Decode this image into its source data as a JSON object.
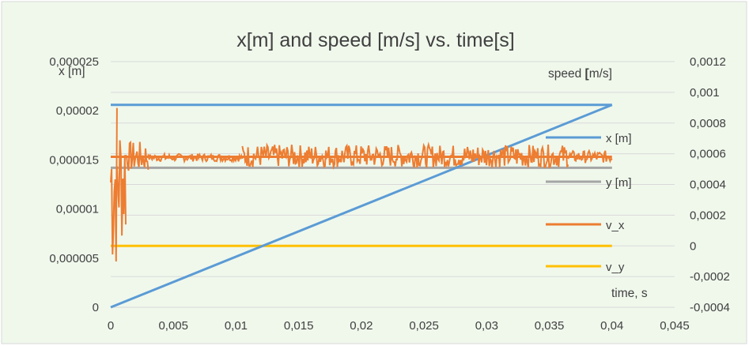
{
  "chart_data": {
    "type": "line",
    "title": "x[m] and speed [m/s] vs. time[s]",
    "xlabel": "time, s",
    "ylabel_left": "x [m]",
    "ylabel_right_prefix": "speed ",
    "ylabel_right_bracket": "[",
    "ylabel_right_suffix": "m/s]",
    "xlim": [
      0,
      0.045
    ],
    "ylim_left": [
      0,
      2.5e-05
    ],
    "ylim_right": [
      -0.0004,
      0.0012
    ],
    "x_ticks": [
      "0",
      "0,005",
      "0,01",
      "0,015",
      "0,02",
      "0,025",
      "0,03",
      "0,035",
      "0,04",
      "0,045"
    ],
    "y_left_ticks": [
      "0",
      "0,000005",
      "0,00001",
      "0,000015",
      "0,00002",
      "0,000025"
    ],
    "y_right_ticks": [
      "-0,0004",
      "-0,0002",
      "0",
      "0,0002",
      "0,0004",
      "0,0006",
      "0,0008",
      "0,001",
      "0,0012"
    ],
    "grid": true,
    "legend_position": "right",
    "series": [
      {
        "name": "x [m]",
        "axis": "left",
        "color": "#5B9BD5",
        "x": [
          0,
          0.04
        ],
        "y": [
          0,
          2.06e-05
        ]
      },
      {
        "name": "y [m]",
        "axis": "left",
        "color": "#A5A5A5",
        "x": [
          0,
          0.04
        ],
        "y": [
          1.42e-05,
          1.42e-05
        ]
      },
      {
        "name": "v_x",
        "axis": "right",
        "color": "#ED7D31",
        "x": [
          0,
          0.0003,
          0.0005,
          0.0008,
          0.001,
          0.002,
          0.0027,
          0.003,
          0.01,
          0.0105,
          0.04
        ],
        "y": [
          0.00058,
          0.00058,
          0.00058,
          0.00058,
          0.00058,
          0.00058,
          0.00058,
          0.00058,
          0.00058,
          0.00058,
          0.00058
        ],
        "bands": [
          {
            "x0": 0.0,
            "x1": 0.0005,
            "ymin": -0.0002,
            "ymax": 0.00105
          },
          {
            "x0": 0.0005,
            "x1": 0.0012,
            "ymin": 0.0,
            "ymax": 0.00088
          },
          {
            "x0": 0.0012,
            "x1": 0.003,
            "ymin": 0.00048,
            "ymax": 0.00068
          },
          {
            "x0": 0.003,
            "x1": 0.0105,
            "ymin": 0.00055,
            "ymax": 0.0006
          },
          {
            "x0": 0.0105,
            "x1": 0.0365,
            "ymin": 0.00051,
            "ymax": 0.00066
          },
          {
            "x0": 0.0365,
            "x1": 0.04,
            "ymin": 0.00054,
            "ymax": 0.00062
          }
        ]
      },
      {
        "name": "v_y",
        "axis": "right",
        "color": "#FFC000",
        "x": [
          0,
          0.04
        ],
        "y": [
          0,
          0
        ]
      }
    ]
  }
}
